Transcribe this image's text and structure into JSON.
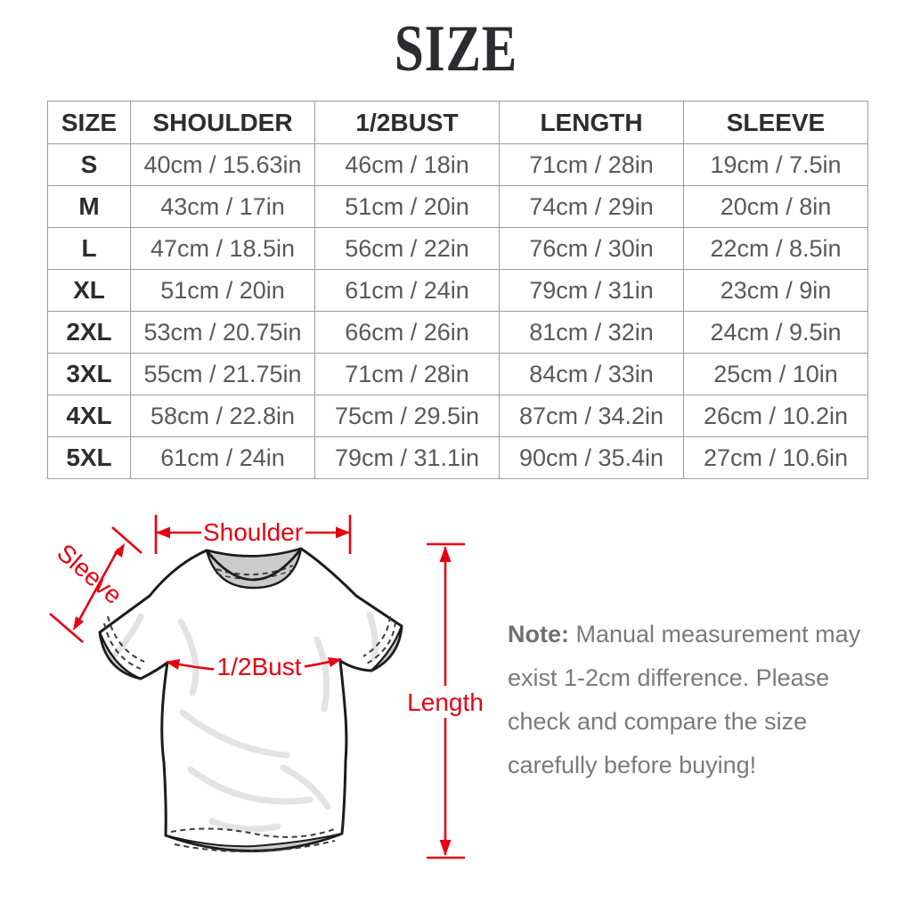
{
  "page": {
    "title": "SIZE"
  },
  "size_table": {
    "columns": [
      "SIZE",
      "SHOULDER",
      "1/2BUST",
      "LENGTH",
      "SLEEVE"
    ],
    "rows": [
      [
        "S",
        "40cm / 15.63in",
        "46cm / 18in",
        "71cm / 28in",
        "19cm / 7.5in"
      ],
      [
        "M",
        "43cm / 17in",
        "51cm / 20in",
        "74cm / 29in",
        "20cm / 8in"
      ],
      [
        "L",
        "47cm / 18.5in",
        "56cm / 22in",
        "76cm / 30in",
        "22cm / 8.5in"
      ],
      [
        "XL",
        "51cm / 20in",
        "61cm / 24in",
        "79cm / 31in",
        "23cm / 9in"
      ],
      [
        "2XL",
        "53cm / 20.75in",
        "66cm / 26in",
        "81cm / 32in",
        "24cm / 9.5in"
      ],
      [
        "3XL",
        "55cm / 21.75in",
        "71cm / 28in",
        "84cm / 33in",
        "25cm / 10in"
      ],
      [
        "4XL",
        "58cm / 22.8in",
        "75cm / 29.5in",
        "87cm / 34.2in",
        "26cm / 10.2in"
      ],
      [
        "5XL",
        "61cm / 24in",
        "79cm / 31.1in",
        "90cm / 35.4in",
        "27cm / 10.6in"
      ]
    ]
  },
  "diagram": {
    "labels": {
      "shoulder": "Shoulder",
      "sleeve": "Sleeve",
      "bust": "1/2Bust",
      "length": "Length"
    },
    "accent_color": "#e60012"
  },
  "note": {
    "bold": "Note:",
    "text": " Manual measurement may exist 1-2cm difference. Please check and compare the size carefully before buying!"
  }
}
